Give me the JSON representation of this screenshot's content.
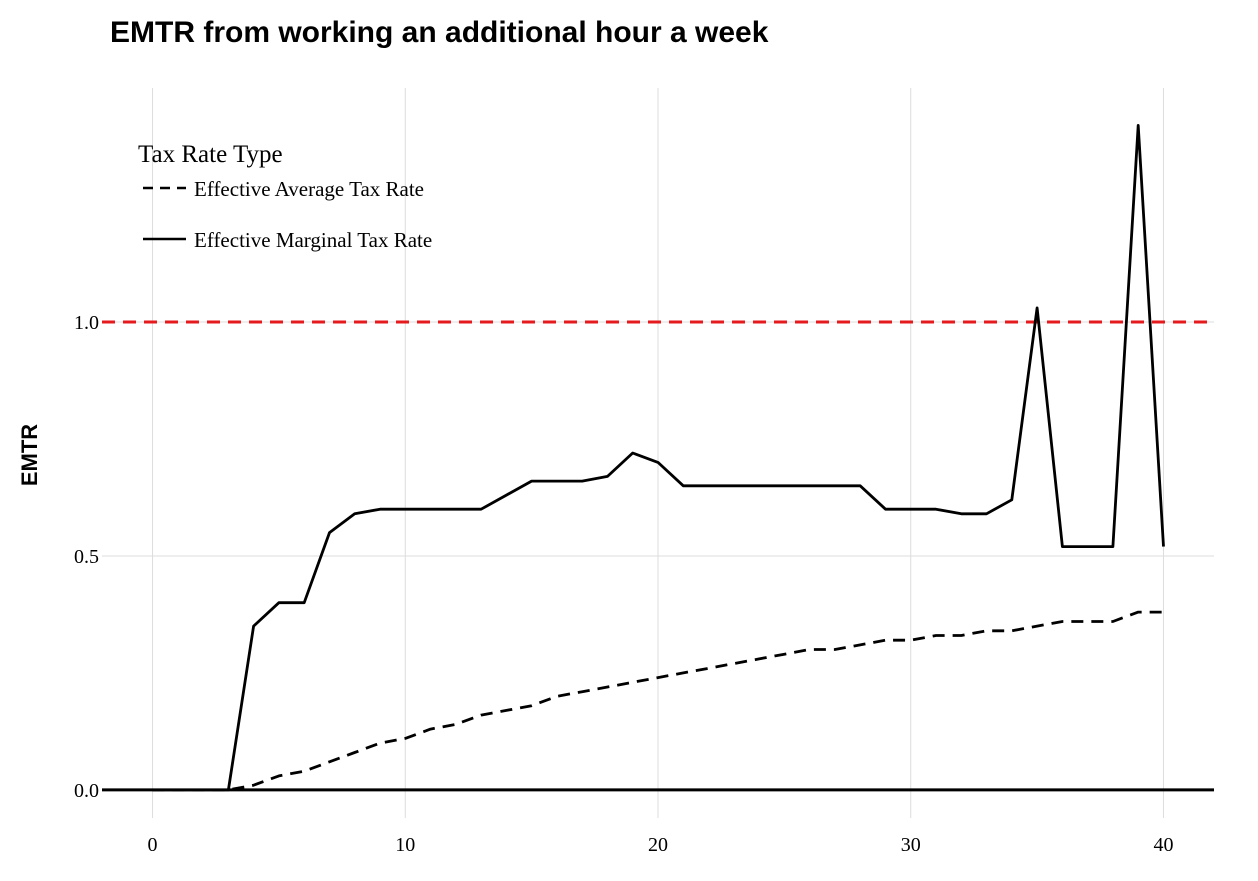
{
  "chart_data": {
    "type": "line",
    "title": "EMTR from working an additional hour a week",
    "xlabel": "",
    "ylabel": "EMTR",
    "xlim": [
      -2,
      42
    ],
    "ylim": [
      -0.06,
      1.5
    ],
    "x_ticks": [
      0,
      10,
      20,
      30,
      40
    ],
    "y_ticks": [
      0.0,
      0.5,
      1.0
    ],
    "x_tick_labels": [
      "0",
      "10",
      "20",
      "30",
      "40"
    ],
    "y_tick_labels": [
      "0.0",
      "0.5",
      "1.0"
    ],
    "grid": true,
    "legend": {
      "title": "Tax Rate Type",
      "position": "top-left"
    },
    "series": [
      {
        "name": "Effective Average Tax Rate",
        "style": "dashed",
        "color": "#000000",
        "x": [
          0,
          1,
          2,
          3,
          4,
          5,
          6,
          7,
          8,
          9,
          10,
          11,
          12,
          13,
          14,
          15,
          16,
          17,
          18,
          19,
          20,
          21,
          22,
          23,
          24,
          25,
          26,
          27,
          28,
          29,
          30,
          31,
          32,
          33,
          34,
          35,
          36,
          37,
          38,
          39,
          40
        ],
        "y": [
          0,
          0,
          0,
          0,
          0.01,
          0.03,
          0.04,
          0.06,
          0.08,
          0.1,
          0.11,
          0.13,
          0.14,
          0.16,
          0.17,
          0.18,
          0.2,
          0.21,
          0.22,
          0.23,
          0.24,
          0.25,
          0.26,
          0.27,
          0.28,
          0.29,
          0.3,
          0.3,
          0.31,
          0.32,
          0.32,
          0.33,
          0.33,
          0.34,
          0.34,
          0.35,
          0.36,
          0.36,
          0.36,
          0.38,
          0.38
        ]
      },
      {
        "name": "Effective Marginal Tax Rate",
        "style": "solid",
        "color": "#000000",
        "x": [
          0,
          1,
          2,
          3,
          4,
          5,
          6,
          7,
          8,
          9,
          10,
          11,
          12,
          13,
          14,
          15,
          16,
          17,
          18,
          19,
          20,
          21,
          22,
          23,
          24,
          25,
          26,
          27,
          28,
          29,
          30,
          31,
          32,
          33,
          34,
          35,
          36,
          37,
          38,
          39,
          40
        ],
        "y": [
          0,
          0,
          0,
          0,
          0.35,
          0.4,
          0.4,
          0.55,
          0.59,
          0.6,
          0.6,
          0.6,
          0.6,
          0.6,
          0.63,
          0.66,
          0.66,
          0.66,
          0.67,
          0.72,
          0.7,
          0.65,
          0.65,
          0.65,
          0.65,
          0.65,
          0.65,
          0.65,
          0.65,
          0.6,
          0.6,
          0.6,
          0.59,
          0.59,
          0.62,
          1.03,
          0.52,
          0.52,
          0.52,
          1.42,
          0.52
        ]
      }
    ],
    "reference_lines": [
      {
        "orientation": "horizontal",
        "y": 1.0,
        "style": "dashed",
        "color": "#e41a1c"
      },
      {
        "orientation": "horizontal",
        "y": 0.0,
        "style": "solid",
        "color": "#000000"
      }
    ]
  }
}
